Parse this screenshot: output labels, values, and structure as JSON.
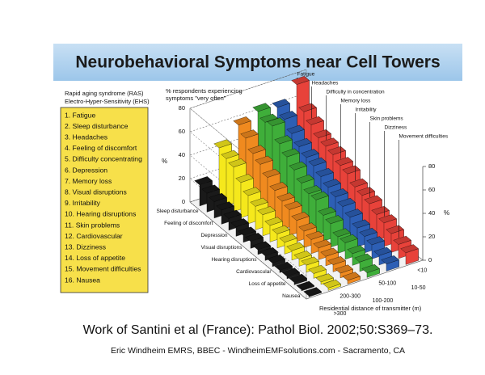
{
  "slide": {
    "title": "Neurobehavioral Symptoms near Cell Towers",
    "citation": "Work of Santini et al (France): Pathol Biol. 2002;50:S369–73.",
    "credit": "Eric Windheim EMRS, BBEC -  WindheimEMFsolutions.com - Sacramento, CA"
  },
  "legend_box": {
    "heading": [
      "Rapid aging syndrome (RAS)",
      "Electro-Hyper-Sensitivity (EHS)"
    ],
    "items": [
      "1. Fatigue",
      "2. Sleep disturbance",
      "3. Headaches",
      "4. Feeling of discomfort",
      "5. Difficulty concentrating",
      "6. Depression",
      "7. Memory loss",
      "8. Visual disruptions",
      "9. Irritability",
      "10. Hearing disruptions",
      "11. Skin problems",
      "12. Cardiovascular",
      "13. Dizziness",
      "14. Loss of appetite",
      "15. Movement difficulties",
      "16. Nausea"
    ]
  },
  "chart_data": {
    "type": "bar3d",
    "y_label": [
      "% respondents experiencing",
      "symptoms \"very often\""
    ],
    "y_unit": "%",
    "x_label": "Residential distance of transmitter (m)",
    "categories": [
      "Fatigue",
      "Sleep disturbance",
      "Headaches",
      "Feeling of discomfort",
      "Difficulty in concentration",
      "Depression",
      "Memory loss",
      "Visual disruptions",
      "Irritability",
      "Hearing disruptions",
      "Skin problems",
      "Cardiovascular",
      "Dizziness",
      "Loss of appetite",
      "Movement difficulties",
      "Nausea"
    ],
    "series": [
      {
        "name": "<10",
        "color": "#e8423a",
        "values": [
          76,
          58,
          52,
          46,
          44,
          42,
          38,
          36,
          30,
          28,
          26,
          22,
          20,
          16,
          12,
          10
        ]
      },
      {
        "name": "10-50",
        "color": "#2d5fb5",
        "values": [
          62,
          57,
          50,
          44,
          40,
          38,
          34,
          30,
          27,
          24,
          20,
          16,
          14,
          12,
          8,
          6
        ]
      },
      {
        "name": "50-100",
        "color": "#3fae3a",
        "values": [
          64,
          60,
          62,
          52,
          46,
          40,
          34,
          30,
          30,
          22,
          20,
          14,
          14,
          10,
          8,
          4
        ]
      },
      {
        "name": "100-200",
        "color": "#f08a1f",
        "values": [
          58,
          52,
          44,
          40,
          34,
          28,
          24,
          22,
          18,
          14,
          12,
          10,
          8,
          6,
          4,
          3
        ]
      },
      {
        "name": "200-300",
        "color": "#f5e81c",
        "values": [
          44,
          40,
          38,
          30,
          24,
          20,
          18,
          14,
          12,
          10,
          8,
          6,
          6,
          4,
          2,
          2
        ]
      },
      {
        "name": ">300",
        "color": "#1a1a1a",
        "values": [
          18,
          16,
          14,
          12,
          10,
          8,
          6,
          6,
          4,
          4,
          3,
          2,
          2,
          2,
          1,
          1
        ]
      }
    ],
    "ylim": [
      0,
      80
    ],
    "yticks": [
      0,
      20,
      40,
      60,
      80
    ],
    "grid": true
  }
}
